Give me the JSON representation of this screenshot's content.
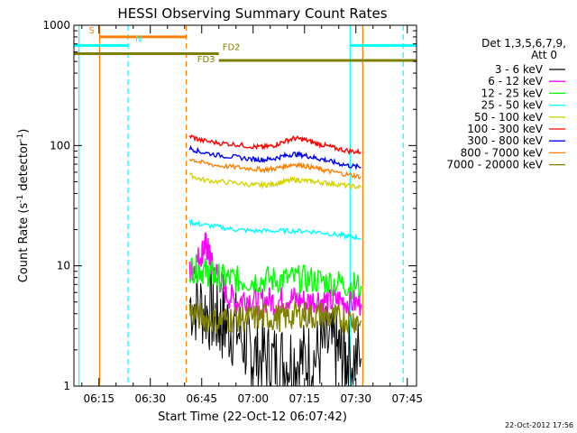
{
  "chart_data": {
    "type": "line",
    "title": "HESSI Observing Summary Count Rates",
    "xlabel": "Start Time (22-Oct-12 06:07:42)",
    "ylabel": "Count Rate (s⁻¹ detector⁻¹)",
    "y_scale": "log",
    "ylim": [
      1,
      1000
    ],
    "xlim_minutes_after_0600": [
      7.7,
      107.7
    ],
    "x_ticks": [
      {
        "label": "06:15",
        "min": 15
      },
      {
        "label": "06:30",
        "min": 30
      },
      {
        "label": "06:45",
        "min": 45
      },
      {
        "label": "07:00",
        "min": 60
      },
      {
        "label": "07:15",
        "min": 75
      },
      {
        "label": "07:30",
        "min": 90
      },
      {
        "label": "07:45",
        "min": 105
      }
    ],
    "y_ticks": [
      {
        "label": "1",
        "value": 1
      },
      {
        "label": "10",
        "value": 10
      },
      {
        "label": "100",
        "value": 100
      },
      {
        "label": "1000",
        "value": 1000
      }
    ],
    "legend": {
      "placement": "right",
      "header1": "Det 1,3,5,6,7,9,",
      "header2": "Att 0"
    },
    "data_interval_minutes_after_0600": [
      41.5,
      91.5
    ],
    "series": [
      {
        "name": "3 - 6 keV",
        "color": "#000000",
        "x": [
          41.5,
          45,
          48,
          50,
          52,
          55,
          58,
          60,
          63,
          66,
          69,
          72,
          75,
          78,
          81,
          84,
          86,
          88,
          91.5
        ],
        "y": [
          5,
          4.5,
          4,
          3.5,
          3.2,
          3,
          2.2,
          1.8,
          1.7,
          1.6,
          1.6,
          1.7,
          1.6,
          1.7,
          2.2,
          2.0,
          1.8,
          1.7,
          1.7
        ]
      },
      {
        "name": "6 - 12 keV",
        "color": "#ff00ff",
        "x": [
          41.5,
          43,
          45,
          46,
          47,
          48,
          50,
          52,
          55,
          58,
          61,
          64,
          67,
          70,
          73,
          76,
          79,
          82,
          85,
          88,
          91.5
        ],
        "y": [
          9,
          10,
          13,
          15,
          13,
          10,
          8,
          6,
          5,
          5.5,
          5,
          5.2,
          5,
          5.5,
          5.2,
          5,
          5.3,
          5,
          5.2,
          5,
          4.8
        ]
      },
      {
        "name": "12 - 25 keV",
        "color": "#00ff00",
        "x": [
          41.5,
          44,
          46,
          48,
          50,
          53,
          56,
          60,
          64,
          68,
          72,
          76,
          80,
          84,
          88,
          91.5
        ],
        "y": [
          9.5,
          9.5,
          9,
          8.5,
          8,
          7.8,
          7.6,
          7.6,
          7.7,
          7.7,
          7.8,
          7.7,
          7.5,
          7.3,
          7,
          6.8
        ]
      },
      {
        "name": "25 - 50 keV",
        "color": "#00ffff",
        "x": [
          41.5,
          45,
          50,
          55,
          60,
          65,
          70,
          75,
          80,
          85,
          88,
          91.5
        ],
        "y": [
          23,
          22,
          21,
          20,
          19.5,
          19.5,
          19.5,
          19.5,
          19,
          18,
          17.5,
          17
        ]
      },
      {
        "name": "50 - 100 keV",
        "color": "#d4d400",
        "x": [
          41.5,
          45,
          50,
          55,
          60,
          63,
          66,
          69,
          72,
          75,
          78,
          81,
          84,
          88,
          91.5
        ],
        "y": [
          57,
          52,
          50,
          49,
          47,
          47,
          48,
          50,
          52,
          51,
          50,
          49,
          48,
          46,
          45
        ]
      },
      {
        "name": "100 - 300 keV",
        "color": "#ff0000",
        "x": [
          41.5,
          45,
          50,
          55,
          60,
          63,
          66,
          69,
          72,
          75,
          78,
          81,
          84,
          88,
          91.5
        ],
        "y": [
          120,
          110,
          105,
          102,
          98,
          97,
          100,
          108,
          115,
          112,
          105,
          100,
          95,
          90,
          88
        ]
      },
      {
        "name": "300 - 800 keV",
        "color": "#0000ff",
        "x": [
          41.5,
          45,
          50,
          55,
          60,
          63,
          66,
          69,
          72,
          75,
          78,
          81,
          84,
          88,
          91.5
        ],
        "y": [
          95,
          88,
          83,
          80,
          77,
          76,
          78,
          82,
          85,
          83,
          79,
          76,
          72,
          68,
          66
        ]
      },
      {
        "name": "800 - 7000 keV",
        "color": "#ff8000",
        "x": [
          41.5,
          45,
          50,
          55,
          60,
          63,
          66,
          69,
          72,
          75,
          78,
          81,
          84,
          88,
          91.5
        ],
        "y": [
          78,
          72,
          68,
          66,
          64,
          63,
          64,
          67,
          70,
          68,
          65,
          62,
          60,
          57,
          55
        ]
      },
      {
        "name": "7000 - 20000 keV",
        "color": "#808000",
        "x": [
          41.5,
          44,
          47,
          50,
          53,
          56,
          59,
          62,
          65,
          68,
          71,
          74,
          77,
          80,
          83,
          86,
          89,
          91.5
        ],
        "y": [
          4.2,
          3.8,
          3.6,
          3.5,
          3.6,
          3.7,
          3.6,
          3.8,
          3.7,
          3.7,
          3.8,
          4,
          3.8,
          3.9,
          3.7,
          3.6,
          3.6,
          3.5
        ]
      }
    ],
    "annotations": {
      "bars": [
        {
          "label": "S",
          "color": "#ff8000",
          "start": 15.2,
          "end": 40.5,
          "level": 800
        },
        {
          "label": "N",
          "color": "#00ffff",
          "start": 7.7,
          "end": 23.5,
          "level": 680
        },
        {
          "label": "",
          "color": "#00ffff",
          "start": 88.3,
          "end": 107.7,
          "level": 680
        },
        {
          "label": "FD2",
          "color": "#808000",
          "start": 7.7,
          "end": 50,
          "level": 580
        },
        {
          "label": "FD3",
          "color": "#808000",
          "start": 50,
          "end": 107.7,
          "level": 510
        }
      ],
      "vlines": [
        {
          "min": 9.2,
          "color": "#00ffff",
          "style": "solid"
        },
        {
          "min": 23.5,
          "color": "#00ffff",
          "style": "dashed"
        },
        {
          "min": 15.2,
          "color": "#ff8000",
          "style": "solid"
        },
        {
          "min": 40.5,
          "color": "#ff8000",
          "style": "dashed"
        },
        {
          "min": 88.3,
          "color": "#00ffff",
          "style": "solid"
        },
        {
          "min": 92.0,
          "color": "#ff8000",
          "style": "solid"
        },
        {
          "min": 103.8,
          "color": "#00ffff",
          "style": "dashed"
        }
      ]
    },
    "footer": "22-Oct-2012 17:56"
  }
}
